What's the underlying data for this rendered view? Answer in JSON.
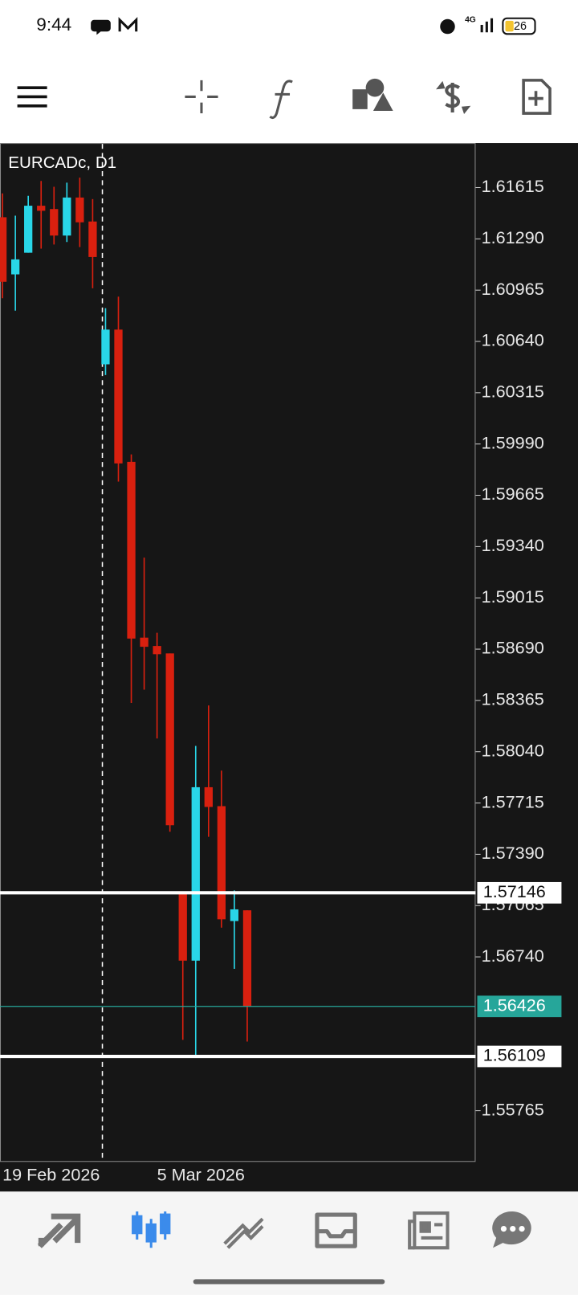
{
  "status_bar": {
    "time": "9:44",
    "network": "4G",
    "battery": "26"
  },
  "chart_data": {
    "type": "candlestick",
    "title": "EURCADc, D1",
    "categories": [
      "19 Feb 2026",
      null,
      null,
      null,
      null,
      null,
      null,
      null,
      null,
      null,
      null,
      null,
      "5 Mar 2026",
      null,
      null,
      null,
      null,
      null,
      null,
      null
    ],
    "candles": [
      {
        "open": 1.61427,
        "high": 1.61578,
        "low": 1.60914,
        "close": 1.61018
      },
      {
        "open": 1.61065,
        "high": 1.61437,
        "low": 1.60835,
        "close": 1.6116
      },
      {
        "open": 1.61202,
        "high": 1.61563,
        "low": 1.61202,
        "close": 1.615
      },
      {
        "open": 1.615,
        "high": 1.61657,
        "low": 1.61228,
        "close": 1.61468
      },
      {
        "open": 1.61479,
        "high": 1.6162,
        "low": 1.61254,
        "close": 1.61311
      },
      {
        "open": 1.61311,
        "high": 1.61646,
        "low": 1.6127,
        "close": 1.61552
      },
      {
        "open": 1.61552,
        "high": 1.61678,
        "low": 1.61238,
        "close": 1.61395
      },
      {
        "open": 1.614,
        "high": 1.61542,
        "low": 1.60977,
        "close": 1.61175
      },
      {
        "open": 1.60495,
        "high": 1.60851,
        "low": 1.60427,
        "close": 1.60715
      },
      {
        "open": 1.60715,
        "high": 1.60924,
        "low": 1.59752,
        "close": 1.59867
      },
      {
        "open": 1.59877,
        "high": 1.59924,
        "low": 1.58349,
        "close": 1.58757
      },
      {
        "open": 1.58763,
        "high": 1.5927,
        "low": 1.58433,
        "close": 1.58705
      },
      {
        "open": 1.5871,
        "high": 1.58794,
        "low": 1.58124,
        "close": 1.58658
      },
      {
        "open": 1.58663,
        "high": 1.58663,
        "low": 1.57533,
        "close": 1.57574
      },
      {
        "open": 1.57145,
        "high": 1.57145,
        "low": 1.56214,
        "close": 1.56716
      },
      {
        "open": 1.56716,
        "high": 1.58077,
        "low": 1.56115,
        "close": 1.57815
      },
      {
        "open": 1.57815,
        "high": 1.58333,
        "low": 1.57501,
        "close": 1.5769
      },
      {
        "open": 1.57695,
        "high": 1.5792,
        "low": 1.56925,
        "close": 1.56978
      },
      {
        "open": 1.56967,
        "high": 1.57161,
        "low": 1.56664,
        "close": 1.57041
      },
      {
        "open": 1.57035,
        "high": 1.57035,
        "low": 1.56203,
        "close": 1.56426
      }
    ],
    "up_color": "#29d6e8",
    "down_color": "#d9200f",
    "ylim": [
      1.55446,
      1.61892
    ],
    "yticks": [
      1.61615,
      {
        "value": 1.6129,
        "label": "1.61290"
      },
      1.60965,
      {
        "value": 1.6064,
        "label": "1.60640"
      },
      1.60315,
      {
        "value": 1.5999,
        "label": "1.59990"
      },
      1.59665,
      {
        "value": 1.5934,
        "label": "1.59340"
      },
      1.59015,
      {
        "value": 1.5869,
        "label": "1.58690"
      },
      1.58365,
      {
        "value": 1.5804,
        "label": "1.58040"
      },
      1.57715,
      {
        "value": 1.5739,
        "label": "1.57390"
      },
      1.57065,
      {
        "value": 1.5674,
        "label": "1.56740"
      },
      1.55765
    ],
    "levels": [
      {
        "value": 1.57146,
        "color": "#ffffff"
      },
      {
        "value": 1.56426,
        "color": "#26a69a"
      },
      {
        "value": 1.56109,
        "color": "#ffffff"
      }
    ]
  }
}
